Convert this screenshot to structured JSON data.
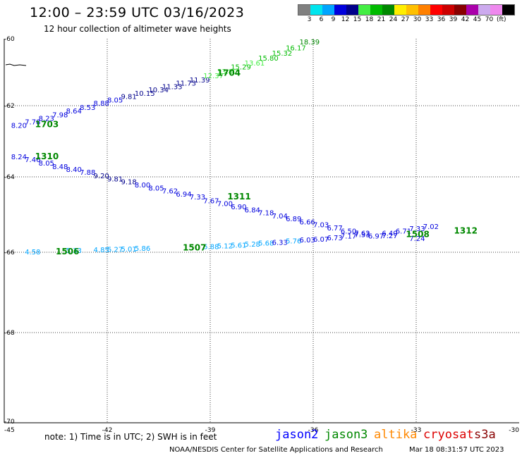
{
  "header": {
    "title": "12:00 – 23:59 UTC 03/16/2023",
    "subtitle": "12 hour collection of altimeter wave heights"
  },
  "color_scale": {
    "unit": "(ft)",
    "colors": [
      "#808080",
      "#00e5ee",
      "#00a5ff",
      "#0000dd",
      "#00008b",
      "#44ee44",
      "#00bb00",
      "#008800",
      "#ffee00",
      "#ffc000",
      "#ff8000",
      "#ff0000",
      "#cc0000",
      "#880000",
      "#aa00aa",
      "#ccaaee",
      "#ee88ee",
      "#000000"
    ],
    "labels": [
      "3",
      "6",
      "9",
      "12",
      "15",
      "18",
      "21",
      "24",
      "27",
      "30",
      "33",
      "36",
      "39",
      "42",
      "45",
      "70"
    ]
  },
  "map": {
    "lon_ticks": [
      -45,
      -42,
      -39,
      -36,
      -33,
      -30
    ],
    "lon_labels": [
      "-45",
      "-42",
      "-39",
      "-36",
      "-33",
      "-30"
    ],
    "lat_ticks": [
      -60,
      -62,
      -64,
      -66,
      -68,
      -70
    ],
    "lat_labels": [
      "-60",
      "-62",
      "-64",
      "-66",
      "-68",
      "-70"
    ],
    "tracks": [
      {
        "name": "track-1703-1704",
        "time_labels": [
          {
            "text": "1703",
            "lon": -44.1,
            "lat": -62.6
          },
          {
            "text": "1704",
            "lon": -38.8,
            "lat": -61.1
          }
        ],
        "points": [
          {
            "v": "8.20",
            "lon": -44.8,
            "lat": -62.62
          },
          {
            "v": "7.78",
            "lon": -44.4,
            "lat": -62.52
          },
          {
            "v": "8.23",
            "lon": -44.0,
            "lat": -62.43
          },
          {
            "v": "7.98",
            "lon": -43.6,
            "lat": -62.33
          },
          {
            "v": "8.64",
            "lon": -43.2,
            "lat": -62.22
          },
          {
            "v": "8.53",
            "lon": -42.8,
            "lat": -62.12
          },
          {
            "v": "8.88",
            "lon": -42.4,
            "lat": -62.0
          },
          {
            "v": "8.05",
            "lon": -42.0,
            "lat": -61.9
          },
          {
            "v": "9.81",
            "lon": -41.6,
            "lat": -61.8
          },
          {
            "v": "10.15",
            "lon": -41.2,
            "lat": -61.7
          },
          {
            "v": "10.34",
            "lon": -40.8,
            "lat": -61.6
          },
          {
            "v": "11.33",
            "lon": -40.4,
            "lat": -61.5
          },
          {
            "v": "11.73",
            "lon": -40.0,
            "lat": -61.4
          },
          {
            "v": "11.39",
            "lon": -39.6,
            "lat": -61.3
          },
          {
            "v": "12.37",
            "lon": -39.2,
            "lat": -61.18
          },
          {
            "v": "13.80",
            "lon": -38.8,
            "lat": -61.05
          },
          {
            "v": "15.29",
            "lon": -38.4,
            "lat": -60.92
          },
          {
            "v": "13.61",
            "lon": -38.0,
            "lat": -60.8
          },
          {
            "v": "15.80",
            "lon": -37.6,
            "lat": -60.65
          },
          {
            "v": "15.32",
            "lon": -37.2,
            "lat": -60.5
          },
          {
            "v": "16.17",
            "lon": -36.8,
            "lat": -60.35
          },
          {
            "v": "18.39",
            "lon": -36.4,
            "lat": -60.17
          }
        ]
      },
      {
        "name": "track-1310-1312",
        "time_labels": [
          {
            "text": "1310",
            "lon": -44.1,
            "lat": -63.5
          },
          {
            "text": "1311",
            "lon": -38.5,
            "lat": -64.6
          },
          {
            "text": "1312",
            "lon": -31.9,
            "lat": -65.5
          }
        ],
        "points": [
          {
            "v": "8.24",
            "lon": -44.8,
            "lat": -63.5
          },
          {
            "v": "7.46",
            "lon": -44.4,
            "lat": -63.58
          },
          {
            "v": "8.05",
            "lon": -44.0,
            "lat": -63.68
          },
          {
            "v": "8.48",
            "lon": -43.6,
            "lat": -63.78
          },
          {
            "v": "8.40",
            "lon": -43.2,
            "lat": -63.86
          },
          {
            "v": "7.88",
            "lon": -42.8,
            "lat": -63.94
          },
          {
            "v": "9.20",
            "lon": -42.4,
            "lat": -64.04
          },
          {
            "v": "9.81",
            "lon": -42.0,
            "lat": -64.12
          },
          {
            "v": "9.18",
            "lon": -41.6,
            "lat": -64.2
          },
          {
            "v": "8.00",
            "lon": -41.2,
            "lat": -64.28
          },
          {
            "v": "8.05",
            "lon": -40.8,
            "lat": -64.36
          },
          {
            "v": "7.62",
            "lon": -40.4,
            "lat": -64.44
          },
          {
            "v": "6.94",
            "lon": -40.0,
            "lat": -64.52
          },
          {
            "v": "7.33",
            "lon": -39.6,
            "lat": -64.6
          },
          {
            "v": "7.67",
            "lon": -39.2,
            "lat": -64.7
          },
          {
            "v": "7.00",
            "lon": -38.8,
            "lat": -64.78
          },
          {
            "v": "6.90",
            "lon": -38.4,
            "lat": -64.86
          },
          {
            "v": "6.84",
            "lon": -38.0,
            "lat": -64.94
          },
          {
            "v": "7.18",
            "lon": -37.6,
            "lat": -65.02
          },
          {
            "v": "7.04",
            "lon": -37.2,
            "lat": -65.1
          },
          {
            "v": "6.89",
            "lon": -36.8,
            "lat": -65.18
          },
          {
            "v": "6.66",
            "lon": -36.4,
            "lat": -65.26
          },
          {
            "v": "7.03",
            "lon": -36.0,
            "lat": -65.34
          },
          {
            "v": "6.77",
            "lon": -35.6,
            "lat": -65.42
          },
          {
            "v": "6.50",
            "lon": -35.2,
            "lat": -65.5
          },
          {
            "v": "7.62",
            "lon": -34.8,
            "lat": -65.56
          },
          {
            "v": "6.97",
            "lon": -34.4,
            "lat": -65.64
          },
          {
            "v": "6.40",
            "lon": -34.0,
            "lat": -65.56
          },
          {
            "v": "6.71",
            "lon": -33.6,
            "lat": -65.5
          },
          {
            "v": "7.33",
            "lon": -33.2,
            "lat": -65.44
          },
          {
            "v": "7.02",
            "lon": -32.8,
            "lat": -65.38
          }
        ]
      },
      {
        "name": "track-1506-1508",
        "time_labels": [
          {
            "text": "1506",
            "lon": -43.5,
            "lat": -66.05
          },
          {
            "text": "1507",
            "lon": -39.8,
            "lat": -65.95
          },
          {
            "text": "1508",
            "lon": -33.3,
            "lat": -65.6
          }
        ],
        "points": [
          {
            "v": "4.58",
            "lon": -44.4,
            "lat": -66.05
          },
          {
            "v": "5.33",
            "lon": -43.2,
            "lat": -66.02
          },
          {
            "v": "4.85",
            "lon": -42.4,
            "lat": -66.0
          },
          {
            "v": "5.27",
            "lon": -42.0,
            "lat": -65.99
          },
          {
            "v": "5.01",
            "lon": -41.6,
            "lat": -65.98
          },
          {
            "v": "5.86",
            "lon": -41.2,
            "lat": -65.96
          },
          {
            "v": "5.88",
            "lon": -39.2,
            "lat": -65.92
          },
          {
            "v": "5.12",
            "lon": -38.8,
            "lat": -65.9
          },
          {
            "v": "5.61",
            "lon": -38.4,
            "lat": -65.88
          },
          {
            "v": "5.28",
            "lon": -38.0,
            "lat": -65.85
          },
          {
            "v": "5.68",
            "lon": -37.6,
            "lat": -65.82
          },
          {
            "v": "6.33",
            "lon": -37.2,
            "lat": -65.8
          },
          {
            "v": "5.76",
            "lon": -36.8,
            "lat": -65.77
          },
          {
            "v": "6.03",
            "lon": -36.4,
            "lat": -65.74
          },
          {
            "v": "6.07",
            "lon": -36.0,
            "lat": -65.72
          },
          {
            "v": "6.73",
            "lon": -35.6,
            "lat": -65.68
          },
          {
            "v": "7.17",
            "lon": -35.2,
            "lat": -65.64
          },
          {
            "v": "7.33",
            "lon": -34.8,
            "lat": -65.6
          },
          {
            "v": "7.27",
            "lon": -34.0,
            "lat": -65.63
          },
          {
            "v": "7.24",
            "lon": -33.2,
            "lat": -65.7
          }
        ]
      }
    ]
  },
  "footer": {
    "note": "note: 1) Time is in UTC; 2) SWH is in feet",
    "satellites": [
      {
        "name": "jason2",
        "color": "#0000ff"
      },
      {
        "name": "jason3",
        "color": "#008800"
      },
      {
        "name": "altika",
        "color": "#ff8800"
      },
      {
        "name": "cryosat",
        "color": "#dd0000"
      },
      {
        "name": "s3a",
        "color": "#880000"
      }
    ],
    "credit": "NOAA/NESDIS Center for Satellite Applications and Research",
    "date": "Mar 18 08:31:57 UTC 2023"
  }
}
